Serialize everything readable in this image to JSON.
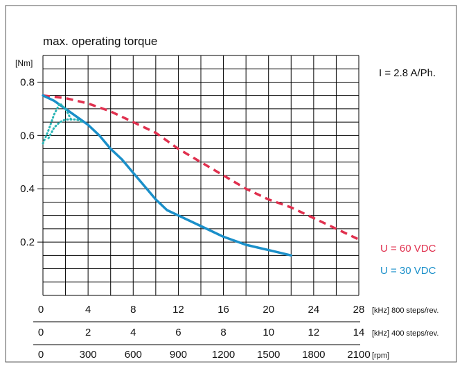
{
  "chart_data": {
    "type": "line",
    "title": "max. operating torque",
    "ylabel": "[Nm]",
    "ylim": [
      0,
      0.9
    ],
    "yticks": [
      "0.2",
      "0.4",
      "0.6",
      "0.8"
    ],
    "xlim": [
      0,
      28
    ],
    "grid": true,
    "annotation": "I = 2.8 A/Ph.",
    "x_axes": [
      {
        "ticks": [
          "0",
          "4",
          "8",
          "12",
          "16",
          "20",
          "24",
          "28"
        ],
        "unit": "[kHz] 800 steps/rev."
      },
      {
        "ticks": [
          "0",
          "2",
          "4",
          "6",
          "8",
          "10",
          "12",
          "14"
        ],
        "unit": "[kHz] 400 steps/rev."
      },
      {
        "ticks": [
          "0",
          "300",
          "600",
          "900",
          "1200",
          "1500",
          "1800",
          "2100"
        ],
        "unit": "[rpm]"
      }
    ],
    "series": [
      {
        "name": "U = 60 VDC",
        "color": "#e0304e",
        "style": "dashed",
        "x": [
          0,
          2,
          4,
          6,
          8,
          10,
          12,
          14,
          16,
          18,
          20,
          22,
          24,
          26,
          28
        ],
        "y": [
          0.75,
          0.74,
          0.72,
          0.69,
          0.65,
          0.61,
          0.55,
          0.5,
          0.45,
          0.4,
          0.36,
          0.33,
          0.29,
          0.25,
          0.21
        ]
      },
      {
        "name": "U = 30 VDC",
        "color": "#1a8fc9",
        "style": "solid",
        "x": [
          0,
          1,
          2,
          3,
          4,
          5,
          6,
          7,
          8,
          9,
          10,
          11,
          12,
          14,
          16,
          18,
          20,
          22
        ],
        "y": [
          0.75,
          0.73,
          0.7,
          0.67,
          0.64,
          0.6,
          0.55,
          0.51,
          0.46,
          0.41,
          0.36,
          0.32,
          0.3,
          0.26,
          0.22,
          0.19,
          0.17,
          0.15
        ]
      }
    ],
    "resonance_curves": [
      {
        "color": "#2ab5b5",
        "x": [
          0,
          0.5,
          1,
          1.5,
          2,
          2.5
        ],
        "y": [
          0.57,
          0.62,
          0.68,
          0.72,
          0.7,
          0.66
        ]
      },
      {
        "color": "#2ab5b5",
        "x": [
          0.5,
          1,
          1.5,
          2,
          2.5,
          3,
          3.5
        ],
        "y": [
          0.59,
          0.63,
          0.65,
          0.66,
          0.66,
          0.66,
          0.65
        ]
      }
    ]
  }
}
